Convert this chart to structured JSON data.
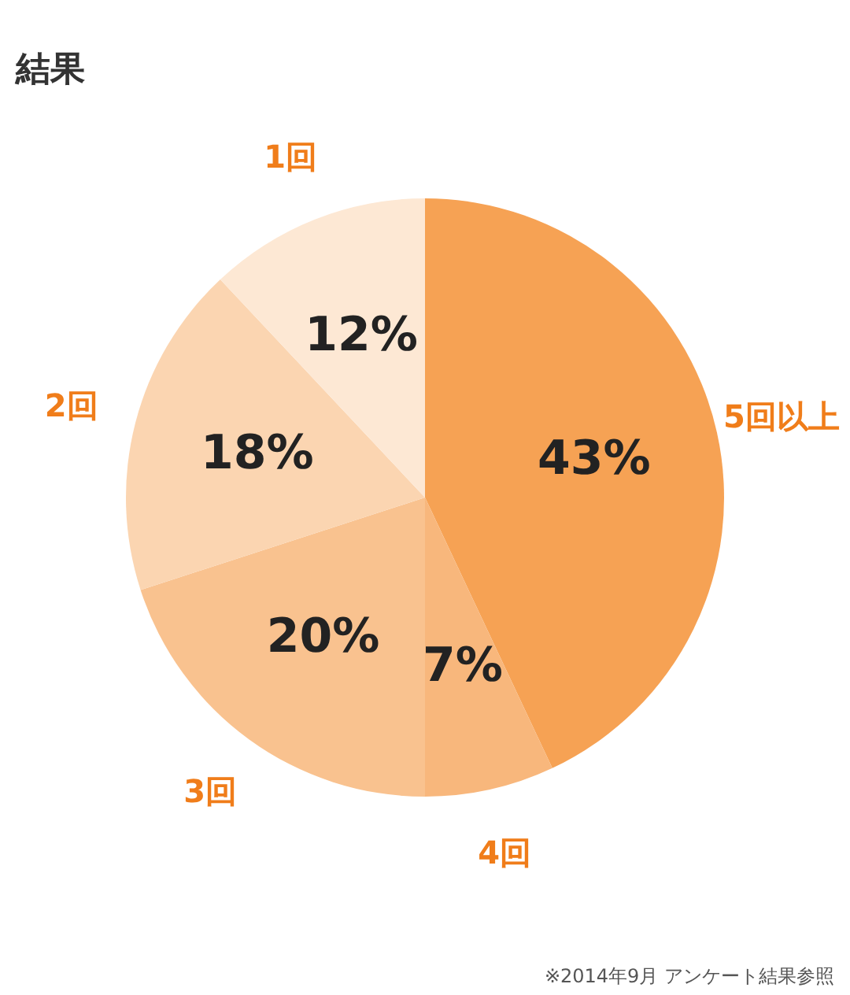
{
  "chart_data": {
    "type": "pie",
    "title": "結果",
    "categories": [
      "5回以上",
      "4回",
      "3回",
      "2回",
      "1回"
    ],
    "values": [
      43,
      7,
      20,
      18,
      12
    ],
    "colors": [
      "#f6a254",
      "#f8b77c",
      "#f9c28f",
      "#fbd5b1",
      "#fde8d4"
    ],
    "value_labels": [
      "43%",
      "7%",
      "20%",
      "18%",
      "12%"
    ],
    "annotations": [
      "※2014年9月 アンケート結果参照"
    ]
  }
}
